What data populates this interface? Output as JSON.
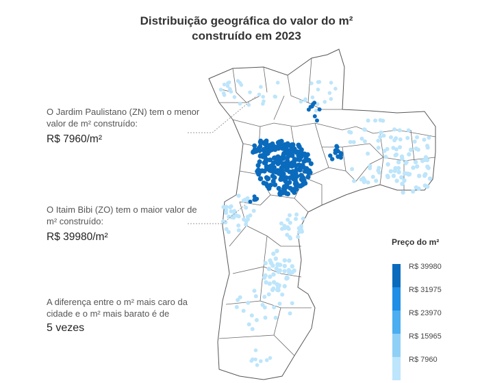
{
  "title": {
    "line1": "Distribuição geográfica do valor do m²",
    "line2": "construído em 2023"
  },
  "annotations": {
    "zn": {
      "text": "O Jardim Paulistano (ZN) tem o menor valor de m² construído:",
      "value": "R$ 7960/m²"
    },
    "zo": {
      "text": "O Itaim Bibi (ZO) tem o maior valor de m² construído:",
      "value": "R$ 39980/m²"
    },
    "difference": {
      "text": "A diferença entre o m² mais caro da cidade e o m² mais barato é de",
      "value": "5 vezes"
    }
  },
  "legend": {
    "title": "Preço do m²",
    "items": [
      {
        "label": "R$ 39980",
        "color": "#0a6bbd"
      },
      {
        "label": "R$ 31975",
        "color": "#1f8ee6"
      },
      {
        "label": "R$ 23970",
        "color": "#4aaef0"
      },
      {
        "label": "R$ 15965",
        "color": "#8fd0f7"
      },
      {
        "label": "R$ 7960",
        "color": "#bde5fb"
      }
    ]
  },
  "colors": {
    "high": "#0a6bbd",
    "low": "#bde5fb",
    "outline": "#555555"
  }
}
